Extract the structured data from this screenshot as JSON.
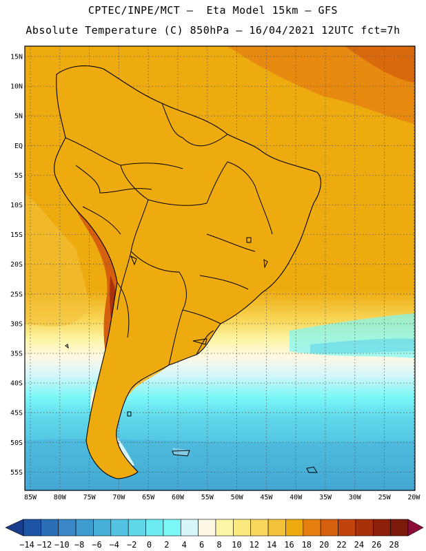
{
  "header": {
    "line1": "CPTEC/INPE/MCT –  Eta Model 15km – GFS",
    "line2": "Absolute Temperature (C) 850hPa – 16/04/2021 12UTC fct=7h"
  },
  "axes": {
    "lat_labels": [
      "15N",
      "10N",
      "5N",
      "EQ",
      "5S",
      "10S",
      "15S",
      "20S",
      "25S",
      "30S",
      "35S",
      "40S",
      "45S",
      "50S",
      "55S"
    ],
    "lon_labels": [
      "85W",
      "80W",
      "75W",
      "70W",
      "65W",
      "60W",
      "55W",
      "50W",
      "45W",
      "40W",
      "35W",
      "30W",
      "25W",
      "20W"
    ]
  },
  "colorbar": {
    "labels": [
      "-14",
      "-12",
      "-10",
      "-8",
      "-6",
      "-4",
      "-2",
      "0",
      "2",
      "4",
      "6",
      "8",
      "10",
      "12",
      "14",
      "16",
      "18",
      "20",
      "22",
      "24",
      "26",
      "28"
    ],
    "colors": [
      "#1a3c8c",
      "#1f55a5",
      "#2b6fb8",
      "#3a86c6",
      "#3f9ccf",
      "#47b0d8",
      "#52c4e2",
      "#5fd6ea",
      "#6cebf0",
      "#7bf7f7",
      "#d6f6fa",
      "#fdf8e4",
      "#fdf5a6",
      "#fbe97d",
      "#f8d85c",
      "#f3c13a",
      "#eeab10",
      "#e57f0f",
      "#d5600d",
      "#c2440c",
      "#a8300b",
      "#8e200a",
      "#7a1b0c",
      "#8c0c3a"
    ]
  },
  "colors": {
    "background": "#ffffff",
    "ocean_north": "#eeab10",
    "land_hot": "#c2440c",
    "south_cold": "#3f9ccf"
  }
}
